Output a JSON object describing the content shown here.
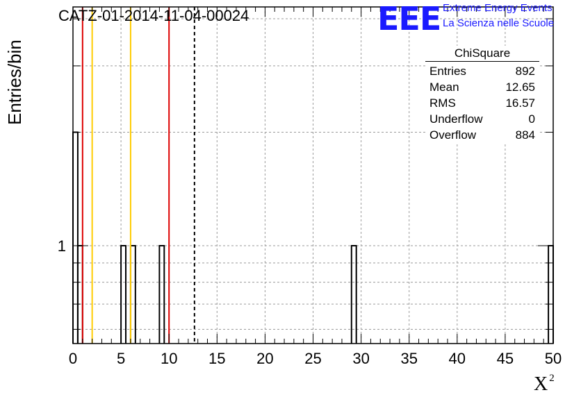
{
  "title": "CATZ-01-2014-11-04-00024",
  "logo": {
    "letters": "EEE",
    "line1": "Extreme Energy Events",
    "line2": "La Scienza nelle Scuole",
    "color": "#1a1aff"
  },
  "axes": {
    "ylabel": "Entries/bin",
    "xlabel": "X",
    "xlabel_sup": "2"
  },
  "stats": {
    "title": "ChiSquare",
    "rows": [
      {
        "label": "Entries",
        "value": "892"
      },
      {
        "label": "Mean",
        "value": "12.65"
      },
      {
        "label": "RMS",
        "value": "16.57"
      },
      {
        "label": "Underflow",
        "value": "0"
      },
      {
        "label": "Overflow",
        "value": "884"
      }
    ]
  },
  "chart_data": {
    "type": "bar",
    "x_range": [
      0,
      50
    ],
    "y_scale": "log",
    "y_range": [
      0.55,
      4.3
    ],
    "grid": true,
    "x_ticks": [
      0,
      5,
      10,
      15,
      20,
      25,
      30,
      35,
      40,
      45,
      50
    ],
    "y_tick_labels": [
      {
        "value": 1,
        "label": "1"
      }
    ],
    "bin_width": 0.5,
    "bins": [
      {
        "x0": 0,
        "count": 2
      },
      {
        "x0": 0.5,
        "count": 1
      },
      {
        "x0": 5,
        "count": 1
      },
      {
        "x0": 6,
        "count": 1
      },
      {
        "x0": 9,
        "count": 1
      },
      {
        "x0": 29,
        "count": 1
      },
      {
        "x0": 49.5,
        "count": 1
      }
    ],
    "vertical_lines": [
      {
        "x": 1,
        "color": "#dd0000",
        "style": "solid"
      },
      {
        "x": 2,
        "color": "#ffcc00",
        "style": "solid"
      },
      {
        "x": 6,
        "color": "#ffcc00",
        "style": "solid"
      },
      {
        "x": 10,
        "color": "#dd0000",
        "style": "solid"
      },
      {
        "x": 12.65,
        "color": "#000000",
        "style": "dashed"
      }
    ]
  }
}
